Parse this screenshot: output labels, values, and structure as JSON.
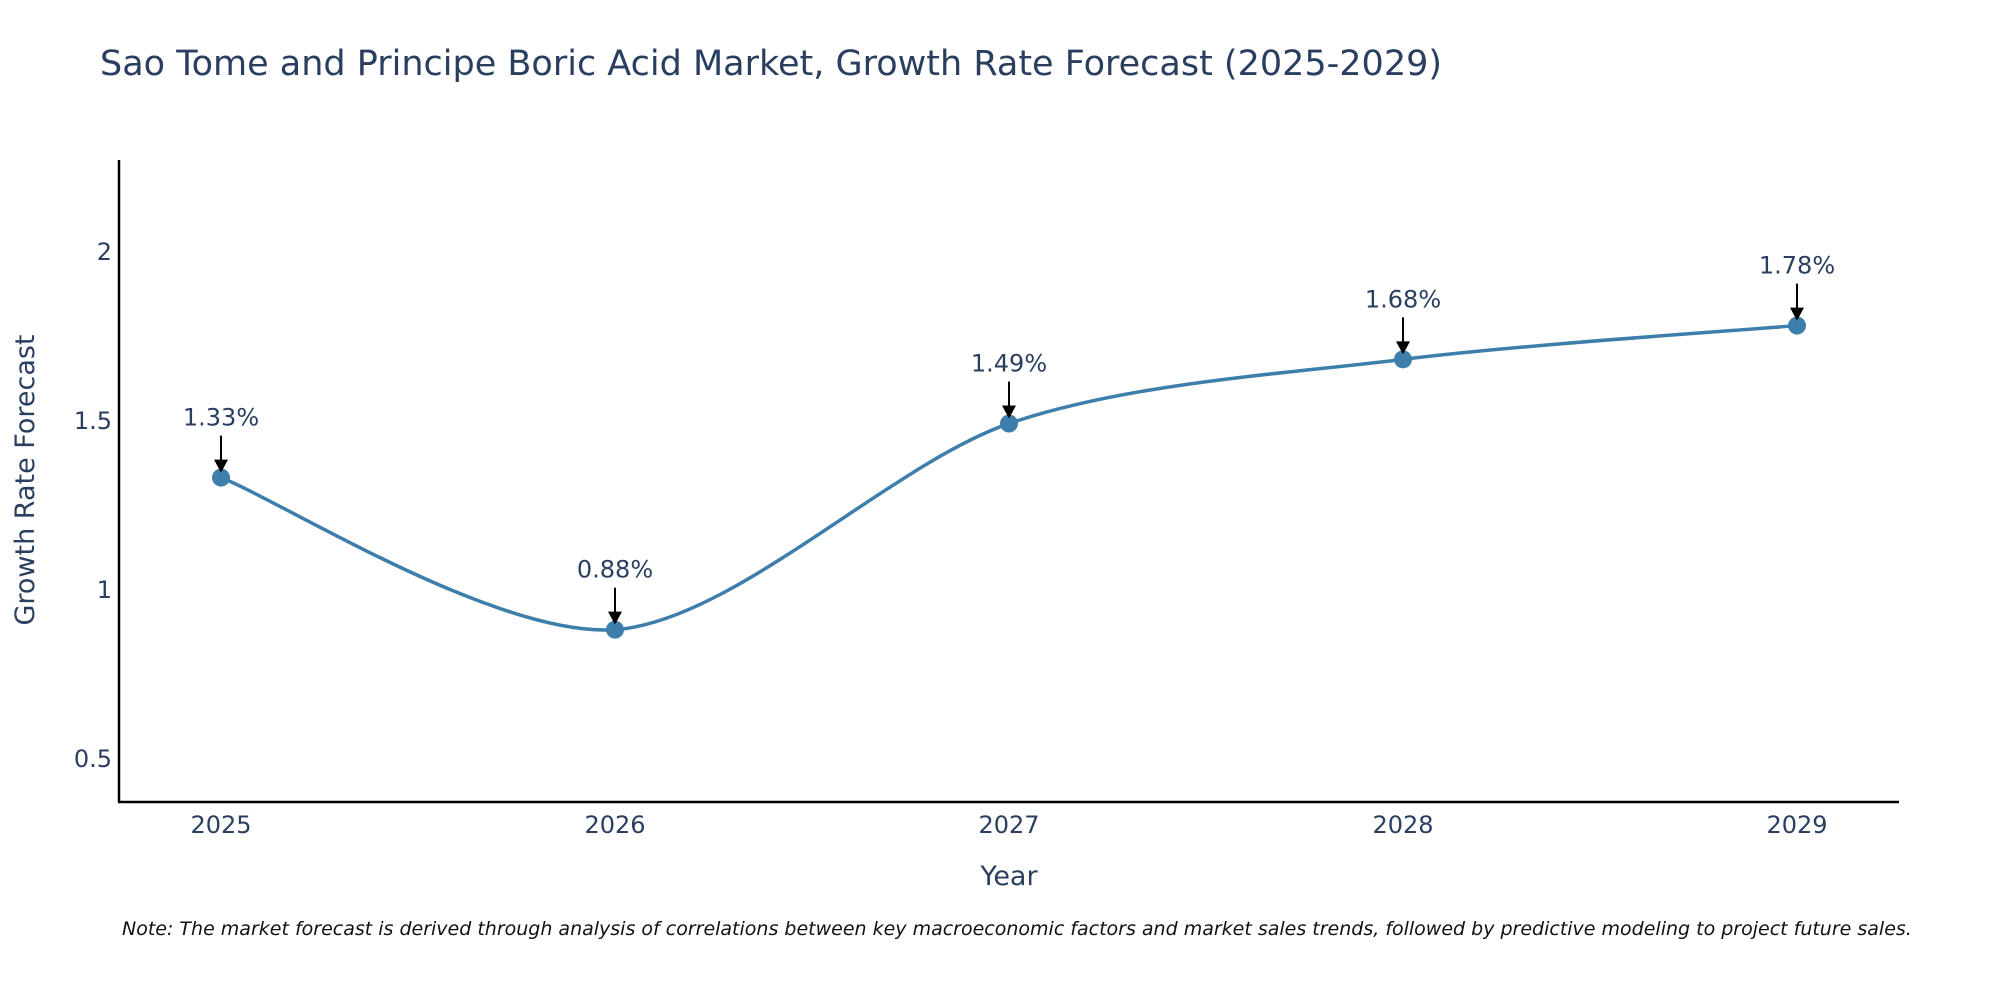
{
  "chart_data": {
    "type": "line",
    "title": "Sao Tome and Principe Boric Acid Market, Growth Rate Forecast (2025-2029)",
    "xlabel": "Year",
    "ylabel": "Growth Rate Forecast",
    "x": [
      "2025",
      "2026",
      "2027",
      "2028",
      "2029"
    ],
    "values": [
      1.33,
      0.88,
      1.49,
      1.68,
      1.78
    ],
    "data_labels": [
      "1.33%",
      "0.88%",
      "1.49%",
      "1.68%",
      "1.78%"
    ],
    "yticks": [
      0.5,
      1,
      1.5,
      2
    ],
    "ytick_labels": [
      "0.5",
      "1",
      "1.5",
      "2"
    ],
    "ylim": [
      0.37,
      2.27
    ],
    "line_color": "#3d7eaa",
    "marker_color": "#3d7eaa",
    "text_color": "#2a3f5f",
    "grid": false
  },
  "note": "Note: The market forecast is derived through analysis of correlations between key macroeconomic factors and market sales trends, followed by predictive modeling to project future sales."
}
